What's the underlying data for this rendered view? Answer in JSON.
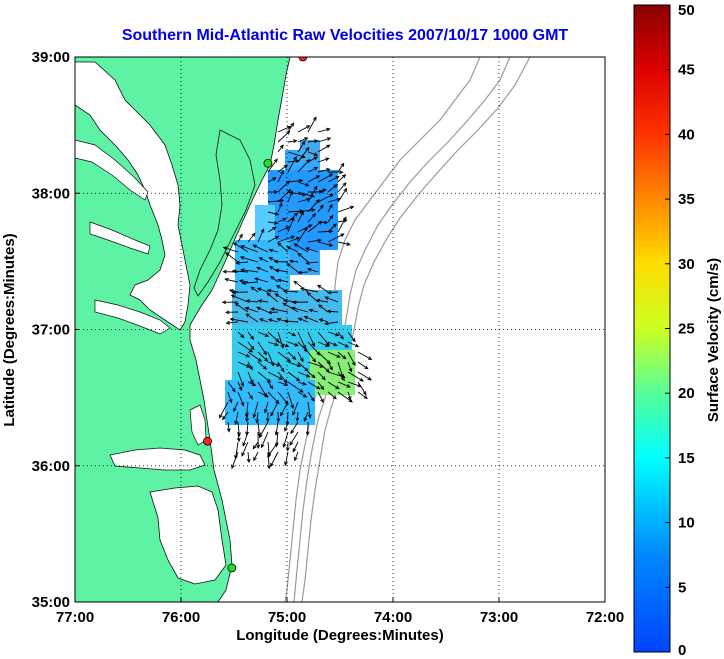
{
  "title": "Southern Mid-Atlantic Raw Velocities 2007/10/17 1000 GMT",
  "map": {
    "xlabel": "Longitude (Degrees:Minutes)",
    "ylabel": "Latitude (Degrees:Minutes)",
    "lon_range": [
      -77,
      -72
    ],
    "lat_range": [
      35,
      39
    ],
    "lon_ticks": [
      {
        "value": -77,
        "label": "77:00"
      },
      {
        "value": -76,
        "label": "76:00"
      },
      {
        "value": -75,
        "label": "75:00"
      },
      {
        "value": -74,
        "label": "74:00"
      },
      {
        "value": -73,
        "label": "73:00"
      },
      {
        "value": -72,
        "label": "72:00"
      }
    ],
    "lat_ticks": [
      {
        "value": 35,
        "label": "35:00"
      },
      {
        "value": 36,
        "label": "36:00"
      },
      {
        "value": 37,
        "label": "37:00"
      },
      {
        "value": 38,
        "label": "38:00"
      },
      {
        "value": 39,
        "label": "39:00"
      }
    ],
    "grid": "dotted",
    "land_color": "#5ef2a4",
    "sites": [
      {
        "lon": -74.85,
        "lat": 39.0,
        "color": "#ff2020"
      },
      {
        "lon": -75.18,
        "lat": 38.22,
        "color": "#22dd22"
      },
      {
        "lon": -75.75,
        "lat": 36.18,
        "color": "#ff2020"
      },
      {
        "lon": -75.52,
        "lat": 35.25,
        "color": "#22dd22"
      }
    ]
  },
  "colorbar": {
    "label": "Surface Velocity (cm/s)",
    "min": 0,
    "max": 50,
    "ticks": [
      {
        "value": 0,
        "label": "0"
      },
      {
        "value": 5,
        "label": "5"
      },
      {
        "value": 10,
        "label": "10"
      },
      {
        "value": 15,
        "label": "15"
      },
      {
        "value": 20,
        "label": "20"
      },
      {
        "value": 25,
        "label": "25"
      },
      {
        "value": 30,
        "label": "30"
      },
      {
        "value": 35,
        "label": "35"
      },
      {
        "value": 40,
        "label": "40"
      },
      {
        "value": 45,
        "label": "45"
      },
      {
        "value": 50,
        "label": "50"
      }
    ]
  }
}
